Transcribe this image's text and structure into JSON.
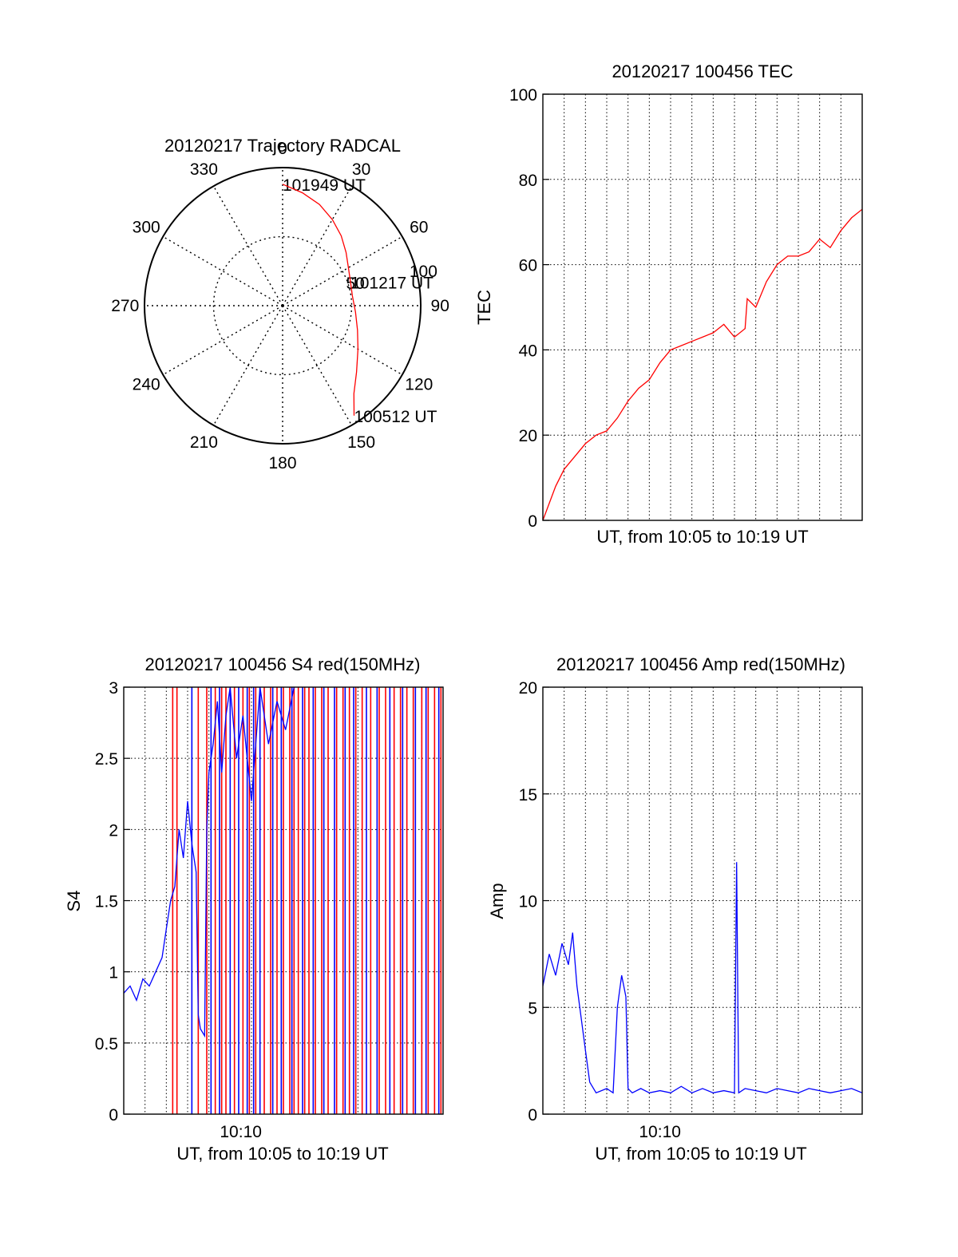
{
  "colors": {
    "red": "#ff0000",
    "blue": "#0000ff",
    "black": "#000000"
  },
  "chart_data": [
    {
      "type": "polar",
      "title": "20120217 Trajectory RADCAL",
      "angle_labels": [
        "0",
        "30",
        "60",
        "90",
        "120",
        "150",
        "180",
        "210",
        "240",
        "270",
        "300",
        "330"
      ],
      "radial_labels": [
        "50",
        "100"
      ],
      "radial_range": [
        0,
        100
      ],
      "annotations": [
        {
          "text": "101949 UT",
          "az": 0,
          "r": 88
        },
        {
          "text": "101217 UT",
          "az": 71,
          "r": 52
        },
        {
          "text": "100512 UT",
          "az": 147,
          "r": 95
        }
      ],
      "series": [
        {
          "color": "#ff0000",
          "points": [
            [
              0,
              88
            ],
            [
              10,
              83
            ],
            [
              20,
              78
            ],
            [
              30,
              72
            ],
            [
              40,
              66
            ],
            [
              50,
              60
            ],
            [
              60,
              55
            ],
            [
              71,
              52
            ],
            [
              82,
              51
            ],
            [
              95,
              53
            ],
            [
              108,
              57
            ],
            [
              120,
              63
            ],
            [
              132,
              72
            ],
            [
              141,
              82
            ],
            [
              147,
              95
            ]
          ]
        }
      ]
    },
    {
      "type": "line",
      "title": "20120217 100456 TEC",
      "xlabel": "UT, from 10:05 to 10:19 UT",
      "ylabel": "TEC",
      "xlim": [
        0,
        15
      ],
      "ylim": [
        0,
        100
      ],
      "yticks": [
        "0",
        "20",
        "40",
        "60",
        "80",
        "100"
      ],
      "grid": true,
      "series": [
        {
          "color": "#ff0000",
          "x": [
            0,
            0.3,
            0.6,
            1.0,
            1.5,
            2.0,
            2.5,
            3.0,
            3.5,
            4.0,
            4.5,
            5.0,
            5.5,
            6.0,
            6.5,
            7.0,
            7.5,
            8.0,
            8.5,
            9.0,
            9.5,
            9.6,
            10.0,
            10.5,
            11.0,
            11.5,
            12.0,
            12.5,
            13.0,
            13.5,
            14.0,
            14.5,
            15.0
          ],
          "y": [
            0,
            4,
            8,
            12,
            15,
            18,
            20,
            21,
            24,
            28,
            31,
            33,
            37,
            40,
            41,
            42,
            43,
            44,
            46,
            43,
            45,
            52,
            50,
            56,
            60,
            62,
            62,
            63,
            66,
            64,
            68,
            71,
            73
          ]
        }
      ]
    },
    {
      "type": "line",
      "title": "20120217 100456 S4 red(150MHz)",
      "xlabel": "UT, from 10:05 to 10:19 UT",
      "ylabel": "S4",
      "xlim": [
        0,
        15
      ],
      "ylim": [
        0,
        3
      ],
      "xticks": [
        {
          "x": 5.5,
          "label": "10:10"
        }
      ],
      "yticks": [
        "0",
        "0.5",
        "1",
        "1.5",
        "2",
        "2.5",
        "3"
      ],
      "grid": true,
      "series": [
        {
          "color": "#0000ff",
          "x": [
            0,
            0.3,
            0.6,
            0.9,
            1.2,
            1.5,
            1.8,
            2.0,
            2.2,
            2.4,
            2.6,
            2.8,
            3.0,
            3.2,
            3.4,
            3.5,
            3.6,
            3.8,
            3.9,
            4.0,
            4.2,
            4.4,
            4.6,
            4.8,
            5.0,
            5.3,
            5.6,
            6.0,
            6.4,
            6.8,
            7.2,
            7.6,
            8.0
          ],
          "y": [
            0.85,
            0.9,
            0.8,
            0.95,
            0.9,
            1.0,
            1.1,
            1.3,
            1.5,
            1.6,
            2.0,
            1.8,
            2.2,
            1.9,
            1.7,
            0.7,
            0.6,
            0.55,
            2.0,
            2.4,
            2.6,
            2.9,
            2.4,
            2.8,
            3.0,
            2.5,
            2.8,
            2.2,
            3.0,
            2.6,
            2.9,
            2.7,
            3.0
          ]
        }
      ],
      "spikes": [
        {
          "color": "#ff0000",
          "x": [
            2.3,
            2.5,
            3.5,
            3.9,
            4.3,
            4.6,
            4.8,
            5.2,
            5.6,
            5.9,
            6.2,
            6.6,
            6.9,
            7.2,
            7.5,
            7.8,
            8.0,
            8.2,
            8.5,
            8.7,
            9.0,
            9.3,
            9.6,
            10.0,
            10.3,
            10.6,
            10.9,
            11.2,
            11.6,
            12.0,
            12.3,
            12.7,
            13.0,
            13.3,
            13.6,
            14.0,
            14.3,
            14.6,
            14.9
          ],
          "top": 3
        },
        {
          "color": "#0000ff",
          "x": [
            3.2,
            4.1,
            4.5,
            5.0,
            5.4,
            5.8,
            6.1,
            6.4,
            7.0,
            7.4,
            7.9,
            8.4,
            8.9,
            9.4,
            9.9,
            10.4,
            10.8,
            11.4,
            11.9,
            12.5,
            13.1,
            13.7,
            14.2,
            14.8
          ],
          "top": 3
        }
      ]
    },
    {
      "type": "line",
      "title": "20120217 100456 Amp red(150MHz)",
      "xlabel": "UT, from 10:05 to 10:19 UT",
      "ylabel": "Amp",
      "xlim": [
        0,
        15
      ],
      "ylim": [
        0,
        20
      ],
      "xticks": [
        {
          "x": 5.5,
          "label": "10:10"
        }
      ],
      "yticks": [
        "0",
        "5",
        "10",
        "15",
        "20"
      ],
      "grid": true,
      "series": [
        {
          "color": "#0000ff",
          "x": [
            0,
            0.3,
            0.6,
            0.9,
            1.2,
            1.4,
            1.6,
            1.8,
            2.0,
            2.2,
            2.5,
            3.0,
            3.3,
            3.5,
            3.7,
            3.9,
            4.0,
            4.2,
            4.6,
            5.0,
            5.5,
            6.0,
            6.5,
            7.0,
            7.5,
            8.0,
            8.5,
            9.0,
            9.1,
            9.2,
            9.5,
            10.0,
            10.5,
            11.0,
            11.5,
            12.0,
            12.5,
            13.0,
            13.5,
            14.0,
            14.5,
            15.0
          ],
          "y": [
            6.0,
            7.5,
            6.5,
            8.0,
            7.0,
            8.5,
            6.0,
            4.5,
            3.0,
            1.5,
            1.0,
            1.2,
            1.0,
            5.0,
            6.5,
            5.5,
            1.2,
            1.0,
            1.2,
            1.0,
            1.1,
            1.0,
            1.3,
            1.0,
            1.2,
            1.0,
            1.1,
            1.0,
            11.8,
            1.0,
            1.2,
            1.1,
            1.0,
            1.2,
            1.1,
            1.0,
            1.2,
            1.1,
            1.0,
            1.1,
            1.2,
            1.0
          ]
        }
      ]
    }
  ]
}
